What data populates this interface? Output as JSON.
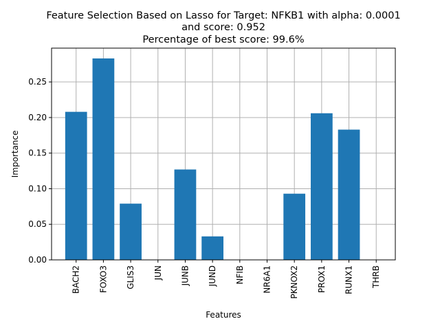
{
  "chart_data": {
    "type": "bar",
    "title_lines": [
      "Feature Selection Based on Lasso for Target: NFKB1 with alpha: 0.0001",
      "and score: 0.952",
      "Percentage of best score: 99.6%"
    ],
    "xlabel": "Features",
    "ylabel": "Importance",
    "categories": [
      "BACH2",
      "FOXO3",
      "GLIS3",
      "JUN",
      "JUNB",
      "JUND",
      "NFIB",
      "NR6A1",
      "PKNOX2",
      "PROX1",
      "RUNX1",
      "THRB"
    ],
    "values": [
      0.208,
      0.283,
      0.079,
      0.0,
      0.127,
      0.033,
      0.0,
      0.0,
      0.093,
      0.206,
      0.183,
      0.0
    ],
    "ylim": [
      0,
      0.2975
    ],
    "yticks": [
      0.0,
      0.05,
      0.1,
      0.15,
      0.2,
      0.25
    ],
    "ytick_labels": [
      "0.00",
      "0.05",
      "0.10",
      "0.15",
      "0.20",
      "0.25"
    ],
    "bar_color": "#1f77b4",
    "grid": true,
    "legend": "none"
  }
}
